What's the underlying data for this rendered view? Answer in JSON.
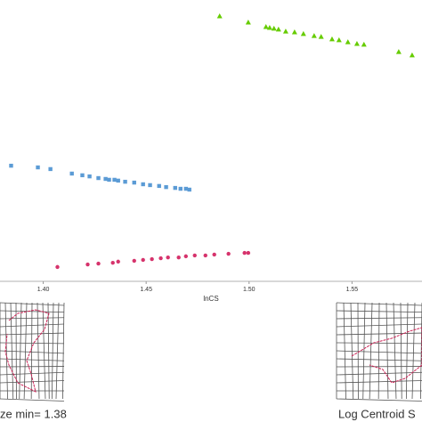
{
  "chart_data": {
    "type": "scatter",
    "xlabel": "lnCS",
    "xlim": [
      1.379,
      1.584
    ],
    "ylim": [
      0,
      100
    ],
    "xticks": [
      {
        "value": 1.4,
        "label": "1.40"
      },
      {
        "value": 1.45,
        "label": "1.45"
      },
      {
        "value": 1.5,
        "label": "1.50"
      },
      {
        "value": 1.55,
        "label": "1.55"
      }
    ],
    "series": [
      {
        "color": "#66cc00",
        "marker": "triangle",
        "x": [
          1.4857,
          1.4996,
          1.5082,
          1.51,
          1.5121,
          1.5143,
          1.5178,
          1.5221,
          1.5264,
          1.5316,
          1.535,
          1.5403,
          1.5437,
          1.548,
          1.5524,
          1.5558,
          1.5727,
          1.5792
        ],
        "values": [
          94.3,
          92.1,
          90.5,
          90.2,
          89.9,
          89.6,
          88.9,
          88.6,
          88.0,
          87.3,
          87.0,
          86.1,
          85.8,
          85.1,
          84.5,
          84.2,
          81.6,
          80.4
        ]
      },
      {
        "color": "#5b9bd5",
        "marker": "square",
        "x": [
          1.3844,
          1.3974,
          1.4035,
          1.4139,
          1.419,
          1.4225,
          1.4268,
          1.4303,
          1.432,
          1.4346,
          1.4364,
          1.4398,
          1.4442,
          1.4485,
          1.4519,
          1.4563,
          1.4597,
          1.4641,
          1.4667,
          1.4693,
          1.471
        ],
        "values": [
          41.1,
          40.5,
          39.9,
          38.3,
          37.7,
          37.3,
          36.7,
          36.4,
          36.1,
          36.1,
          35.8,
          35.4,
          35.1,
          34.5,
          34.2,
          33.9,
          33.5,
          33.2,
          32.9,
          32.9,
          32.6
        ]
      },
      {
        "color": "#d6336c",
        "marker": "circle",
        "x": [
          1.4069,
          1.4216,
          1.4268,
          1.4338,
          1.4364,
          1.4442,
          1.4485,
          1.4528,
          1.4571,
          1.4606,
          1.4658,
          1.4693,
          1.4736,
          1.4788,
          1.4831,
          1.49,
          1.4978,
          1.4996
        ],
        "values": [
          5.1,
          6.0,
          6.3,
          6.6,
          7.0,
          7.3,
          7.6,
          7.9,
          8.2,
          8.5,
          8.5,
          8.9,
          9.2,
          9.2,
          9.5,
          9.8,
          10.1,
          10.1
        ]
      }
    ],
    "annotations": [
      "ze min= 1.38",
      "Log Centroid S"
    ]
  }
}
